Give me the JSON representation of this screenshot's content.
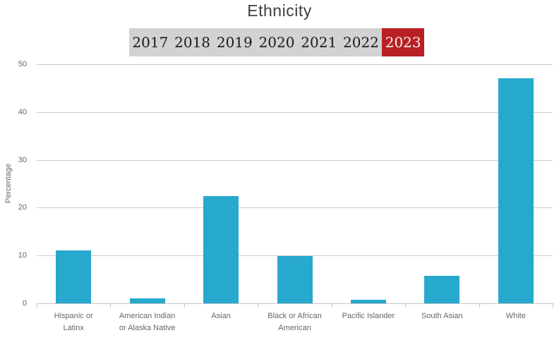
{
  "title": "Ethnicity",
  "tabs": [
    {
      "label": "2017",
      "active": false
    },
    {
      "label": "2018",
      "active": false
    },
    {
      "label": "2019",
      "active": false
    },
    {
      "label": "2020",
      "active": false
    },
    {
      "label": "2021",
      "active": false
    },
    {
      "label": "2022",
      "active": false
    },
    {
      "label": "2023",
      "active": true
    }
  ],
  "colors": {
    "bar": "#26a9cc",
    "tab_bar_bg": "#d2d2d2",
    "tab_text": "#1a1a1a",
    "active_tab_bg": "#b92025",
    "active_tab_text": "#f8f2ea",
    "gridline": "#cccccc",
    "axis_text": "#666666",
    "title_text": "#3f3f3f"
  },
  "chart_data": {
    "type": "bar",
    "title": "Ethnicity",
    "selected_series": "2023",
    "categories": [
      "Hispanic or Latinx",
      "American Indian or Alaska Native",
      "Asian",
      "Black or African American",
      "Pacific Islander",
      "South Asian",
      "White"
    ],
    "category_label_lines": [
      [
        "Hispanic or",
        "Latinx"
      ],
      [
        "American Indian",
        "or Alaska Native"
      ],
      [
        "Asian"
      ],
      [
        "Black or African",
        "American"
      ],
      [
        "Pacific Islander"
      ],
      [
        "South Asian"
      ],
      [
        "White"
      ]
    ],
    "values": [
      11,
      1.1,
      22.4,
      9.9,
      0.7,
      5.7,
      47
    ],
    "xlabel": "",
    "ylabel": "Percentage",
    "ylim": [
      0,
      50
    ],
    "yticks": [
      0,
      10,
      20,
      30,
      40,
      50
    ],
    "grid": true,
    "legend": "none"
  }
}
